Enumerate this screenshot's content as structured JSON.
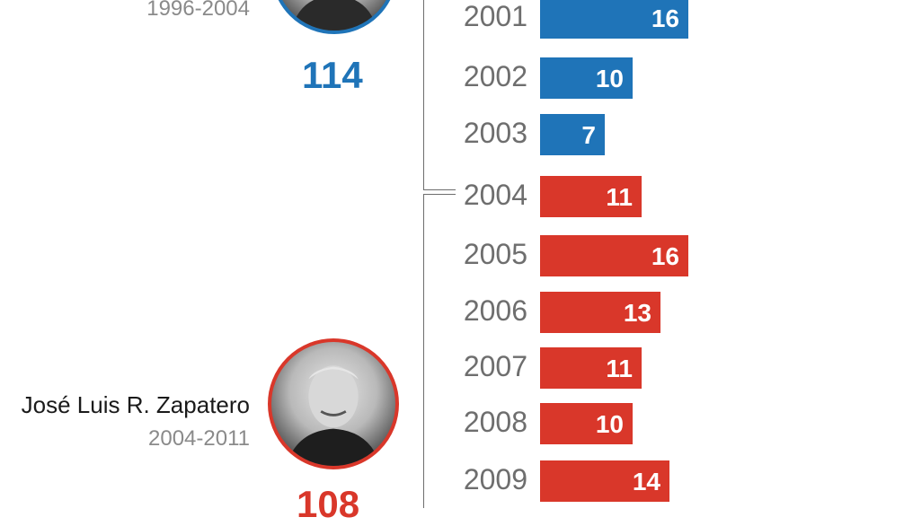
{
  "colors": {
    "blue": "#1f74b8",
    "red": "#d9372a"
  },
  "presidents": [
    {
      "name": "",
      "period": "1996-2004",
      "total": "114",
      "color": "#1f74b8"
    },
    {
      "name": "José Luis R. Zapatero",
      "period": "2004-2011",
      "total": "108",
      "color": "#d9372a"
    }
  ],
  "chart_data": {
    "type": "bar",
    "orientation": "horizontal",
    "categories": [
      "2001",
      "2002",
      "2003",
      "2004",
      "2005",
      "2006",
      "2007",
      "2008",
      "2009"
    ],
    "values": [
      16,
      10,
      7,
      11,
      16,
      13,
      11,
      10,
      14
    ],
    "labels": [
      "16",
      "10",
      "7",
      "11",
      "16",
      "13",
      "11",
      "10",
      "14"
    ],
    "series_groups": [
      "blue",
      "blue",
      "blue",
      "red",
      "red",
      "red",
      "red",
      "red",
      "red"
    ],
    "title": "",
    "xlabel": "",
    "ylabel": ""
  }
}
